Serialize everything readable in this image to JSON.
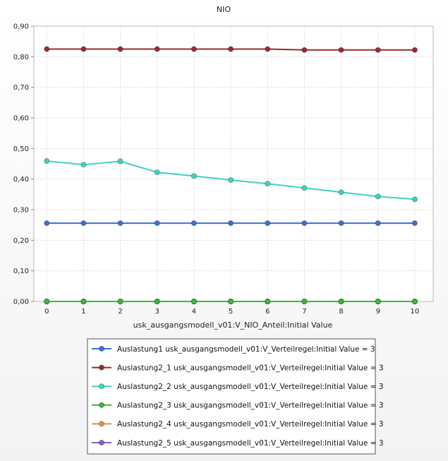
{
  "chart_data": {
    "type": "line",
    "title": "NIO",
    "xlabel": "usk_ausgangsmodell_v01:V_NIO_Anteil:Initial Value",
    "ylabel": "",
    "x": [
      0,
      1,
      2,
      3,
      4,
      5,
      6,
      7,
      8,
      9,
      10
    ],
    "xlim": [
      -0.35,
      10.5
    ],
    "ylim": [
      0,
      0.9
    ],
    "yticks": [
      0,
      0.1,
      0.2,
      0.3,
      0.4,
      0.5,
      0.6,
      0.7,
      0.8,
      0.9
    ],
    "ytick_labels": [
      "0,00",
      "0,10",
      "0,20",
      "0,30",
      "0,40",
      "0,50",
      "0,60",
      "0,70",
      "0,80",
      "0,90"
    ],
    "xtick_labels": [
      "0",
      "1",
      "2",
      "3",
      "4",
      "5",
      "6",
      "7",
      "8",
      "9",
      "10"
    ],
    "grid": true,
    "legend_position": "bottom",
    "series": [
      {
        "name": "Auslastung1 usk_ausgangsmodell_v01:V_Verteilregel:Initial Value = 3",
        "color": "#3f6fd0",
        "values": [
          0.256,
          0.256,
          0.256,
          0.256,
          0.256,
          0.256,
          0.256,
          0.256,
          0.256,
          0.256,
          0.256
        ]
      },
      {
        "name": "Auslastung2_1 usk_ausgangsmodell_v01:V_Verteilregel:Initial Value = 3",
        "color": "#9b2b2b",
        "values": [
          0.825,
          0.825,
          0.825,
          0.825,
          0.825,
          0.825,
          0.825,
          0.822,
          0.822,
          0.822,
          0.822
        ]
      },
      {
        "name": "Auslastung2_2 usk_ausgangsmodell_v01:V_Verteilregel:Initial Value = 3",
        "color": "#3fd2c0",
        "values": [
          0.459,
          0.447,
          0.458,
          0.422,
          0.41,
          0.397,
          0.385,
          0.371,
          0.357,
          0.343,
          0.334
        ]
      },
      {
        "name": "Auslastung2_3 usk_ausgangsmodell_v01:V_Verteilregel:Initial Value = 3",
        "color": "#3bb83b",
        "values": [
          0,
          0,
          0,
          0,
          0,
          0,
          0,
          0,
          0,
          0,
          0
        ]
      },
      {
        "name": "Auslastung2_4 usk_ausgangsmodell_v01:V_Verteilregel:Initial Value = 3",
        "color": "#e0904a",
        "values": [
          0,
          0,
          0,
          0,
          0,
          0,
          0,
          0,
          0,
          0,
          0
        ]
      },
      {
        "name": "Auslastung2_5 usk_ausgangsmodell_v01:V_Verteilregel:Initial Value = 3",
        "color": "#8a5fc8",
        "values": [
          0,
          0,
          0,
          0,
          0,
          0,
          0,
          0,
          0,
          0,
          0
        ]
      }
    ]
  }
}
